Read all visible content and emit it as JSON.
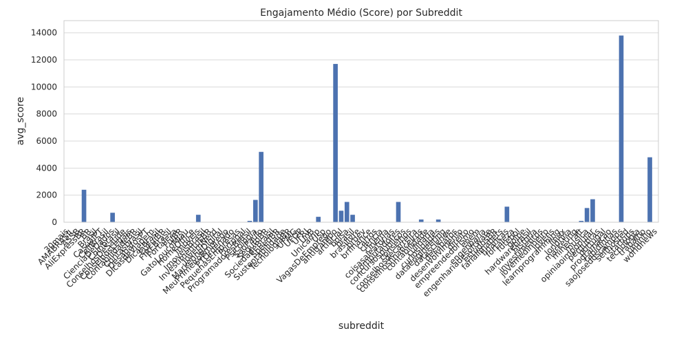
{
  "chart_data": {
    "type": "bar",
    "title": "Engajamento Médio (Score) por Subreddit",
    "x_label": "subreddit",
    "y_label": "avg_score",
    "color": "#4c72b0",
    "grid": true,
    "ylim": [
      0,
      14900
    ],
    "yticks": [
      0,
      2000,
      4000,
      6000,
      8000,
      10000,
      12000,
      14000
    ],
    "categories": [
      "30mais",
      "AMABRASIL",
      "ASSB",
      "AliExpressBR",
      "BR",
      "Brasil",
      "CasualPT",
      "CellBrasil",
      "CienciaDeDados",
      "Coinbrasil",
      "ConselhosDeSaude",
      "ConselhosLegais",
      "ContabilidadeBR",
      "Contasbrasil",
      "DesabafosPT",
      "DicasdeViagem",
      "Dicasbrasil",
      "EuFuiBR",
      "FIREBrasil",
      "Fortaleza",
      "FuiBR",
      "GatoLoucoMiau",
      "HomeOffice",
      "Imoveis",
      "ImoveisBrasil",
      "InvestimentosBR",
      "JovemNerd",
      "MarketingDigital",
      "MeuPrimeiroEmprego",
      "PTOrdenado",
      "PequenasEmpresas",
      "Portugal",
      "ProgramadoresBrasil",
      "Psicologia",
      "SaoPaulo",
      "SeguroBR",
      "SociedadeBrasil",
      "SpeedBR",
      "Sustentabilidade",
      "TecnologiaBR",
      "UFMG",
      "UFOP",
      "UFRJ",
      "UnB",
      "Unicamp",
      "Usp",
      "VagasDeEmprego",
      "antitrampo",
      "artificial",
      "bolsa",
      "brasil",
      "brasilivre",
      "brdev",
      "brfinance",
      "carros",
      "ciencia",
      "cinema",
      "coisasaleatorias",
      "computadores",
      "concursospublicos",
      "conselhos",
      "conselhosdecarreira",
      "conselhosfinanceiros",
      "contabilidade",
      "culinaria",
      "curiosidades",
      "dataengineering",
      "datascience",
      "desabafos",
      "desenvolvimento",
      "direito",
      "empreendedorismo",
      "enem",
      "engenharia",
      "engenhariadesoftware",
      "estudosBR",
      "farialimabets",
      "financas",
      "fortaleza",
      "futebol",
      "golpe",
      "hardwarebrasil",
      "historia",
      "investimentos",
      "jovemedinheiro",
      "jovens",
      "learnprogramming",
      "linux",
      "londrina",
      "marketing",
      "minecraft",
      "musica",
      "opiniaoimpopular",
      "perguntas",
      "portugal",
      "programacao",
      "rapidinhas",
      "saojosedoscampos",
      "selfhosted",
      "startups",
      "tecnologia",
      "trabalho",
      "uminho",
      "worldnews"
    ],
    "values": [
      10,
      15,
      20,
      2400,
      12,
      18,
      10,
      15,
      700,
      20,
      12,
      10,
      15,
      10,
      20,
      12,
      18,
      10,
      15,
      12,
      10,
      20,
      15,
      550,
      12,
      10,
      18,
      15,
      10,
      20,
      12,
      15,
      100,
      1650,
      5200,
      15,
      12,
      10,
      18,
      20,
      12,
      15,
      10,
      20,
      400,
      15,
      12,
      11700,
      850,
      1500,
      550,
      20,
      15,
      12,
      10,
      18,
      15,
      12,
      1500,
      20,
      15,
      18,
      200,
      12,
      15,
      200,
      10,
      12,
      18,
      15,
      10,
      20,
      12,
      15,
      10,
      18,
      12,
      1150,
      15,
      10,
      20,
      12,
      15,
      18,
      10,
      12,
      15,
      20,
      10,
      12,
      100,
      1050,
      1700,
      15,
      12,
      10,
      18,
      13800,
      15,
      12,
      10,
      20,
      4800,
      15
    ]
  }
}
